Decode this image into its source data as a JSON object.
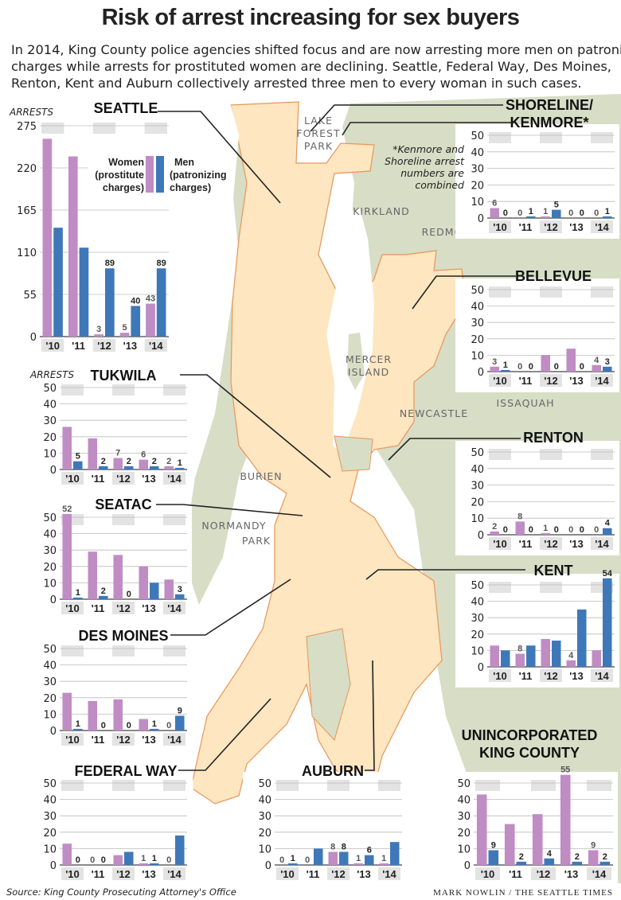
{
  "title": "Risk of arrest increasing for sex buyers",
  "intro": [
    "In 2014, King County police agencies shifted focus and are now arresting more men on patronizing",
    "charges while arrests for prostituted women are declining. Seattle, Federal Way, Des Moines,",
    "Renton, Kent and Auburn collectively arrested three men to every woman in such cases."
  ],
  "source": "Source: King County Prosecuting Attorney's Office",
  "credit": "MARK NOWLIN / THE SEATTLE TIMES",
  "colors": {
    "women": "#c08cc4",
    "men": "#3e78b8",
    "map_city": "#fde6c0",
    "map_land": "#d8ddc6",
    "map_water": "#ffffff",
    "boundary": "#e8955a",
    "band": "#cccccc"
  },
  "legend": {
    "women_line1": "Women",
    "women_line2": "(prostitute",
    "women_line3": "charges)",
    "men_line1": "Men",
    "men_line2": "(patronizing",
    "men_line3": "charges)"
  },
  "shoreline_note": [
    "*Kenmore and",
    "Shoreline arrest",
    "numbers are",
    "combined"
  ],
  "map_labels": [
    "LAKE",
    "FOREST",
    "PARK",
    "KIRKLAND",
    "REDMOND",
    "MERCER",
    "ISLAND",
    "NEWCASTLE",
    "ISSAQUAH",
    "BURIEN",
    "NORMANDY",
    "PARK"
  ],
  "chart_data": [
    {
      "type": "bar",
      "title": "SEATTLE",
      "ylabel": "ARRESTS",
      "categories": [
        "'10",
        "'11",
        "'12",
        "'13",
        "'14"
      ],
      "ylim": [
        0,
        275
      ],
      "yticks": [
        0,
        55,
        110,
        165,
        220,
        275
      ],
      "series": [
        {
          "name": "Women (prostitute charges)",
          "values": [
            258,
            235,
            3,
            5,
            43
          ]
        },
        {
          "name": "Men (patronizing charges)",
          "values": [
            142,
            116,
            89,
            40,
            89
          ]
        }
      ],
      "data_labels": [
        [
          null,
          null,
          "3",
          "5",
          "43"
        ],
        [
          null,
          null,
          "89",
          "40",
          "89"
        ]
      ]
    },
    {
      "type": "bar",
      "title": "SHORELINE/\nKENMORE*",
      "ylabel": "",
      "categories": [
        "'10",
        "'11",
        "'12",
        "'13",
        "'14"
      ],
      "ylim": [
        0,
        50
      ],
      "yticks": [
        0,
        10,
        20,
        30,
        40,
        50
      ],
      "series": [
        {
          "values": [
            6,
            0,
            1,
            0,
            0
          ]
        },
        {
          "values": [
            0,
            1,
            5,
            0,
            1
          ]
        }
      ],
      "data_labels": [
        [
          "6",
          "0",
          "1",
          "0",
          "0"
        ],
        [
          "0",
          "1",
          "5",
          "0",
          "1"
        ]
      ]
    },
    {
      "type": "bar",
      "title": "BELLEVUE",
      "ylabel": "",
      "categories": [
        "'10",
        "'11",
        "'12",
        "'13",
        "'14"
      ],
      "ylim": [
        0,
        50
      ],
      "yticks": [
        0,
        10,
        20,
        30,
        40,
        50
      ],
      "series": [
        {
          "values": [
            3,
            0,
            10,
            14,
            4
          ]
        },
        {
          "values": [
            1,
            0,
            0,
            0,
            3
          ]
        }
      ],
      "data_labels": [
        [
          "3",
          "0",
          null,
          null,
          "4"
        ],
        [
          "1",
          "0",
          "0",
          "0",
          "3"
        ]
      ]
    },
    {
      "type": "bar",
      "title": "TUKWILA",
      "ylabel": "ARRESTS",
      "categories": [
        "'10",
        "'11",
        "'12",
        "'13",
        "'14"
      ],
      "ylim": [
        0,
        50
      ],
      "yticks": [
        0,
        10,
        20,
        30,
        40,
        50
      ],
      "series": [
        {
          "values": [
            26,
            19,
            7,
            6,
            2
          ]
        },
        {
          "values": [
            5,
            2,
            2,
            2,
            1
          ]
        }
      ],
      "data_labels": [
        [
          null,
          null,
          "7",
          "6",
          "2"
        ],
        [
          "5",
          "2",
          "2",
          "2",
          "1"
        ]
      ]
    },
    {
      "type": "bar",
      "title": "RENTON",
      "ylabel": "",
      "categories": [
        "'10",
        "'11",
        "'12",
        "'13",
        "'14"
      ],
      "ylim": [
        0,
        50
      ],
      "yticks": [
        0,
        10,
        20,
        30,
        40,
        50
      ],
      "series": [
        {
          "values": [
            2,
            8,
            1,
            0,
            0
          ]
        },
        {
          "values": [
            0,
            0,
            0,
            0,
            4
          ]
        }
      ],
      "data_labels": [
        [
          "2",
          "8",
          "1",
          "0",
          "0"
        ],
        [
          "0",
          "0",
          "0",
          "0",
          "4"
        ]
      ]
    },
    {
      "type": "bar",
      "title": "SEATAC",
      "ylabel": "",
      "categories": [
        "'10",
        "'11",
        "'12",
        "'13",
        "'14"
      ],
      "ylim": [
        0,
        50
      ],
      "yticks": [
        0,
        10,
        20,
        30,
        40,
        50
      ],
      "series": [
        {
          "values": [
            52,
            29,
            27,
            20,
            12
          ]
        },
        {
          "values": [
            1,
            2,
            0,
            10,
            3
          ]
        }
      ],
      "data_labels": [
        [
          "52",
          null,
          null,
          null,
          null
        ],
        [
          "1",
          "2",
          "0",
          null,
          "3"
        ]
      ]
    },
    {
      "type": "bar",
      "title": "KENT",
      "ylabel": "",
      "categories": [
        "'10",
        "'11",
        "'12",
        "'13",
        "'14"
      ],
      "ylim": [
        0,
        50
      ],
      "yticks": [
        0,
        10,
        20,
        30,
        40,
        50
      ],
      "series": [
        {
          "values": [
            13,
            8,
            17,
            4,
            10
          ]
        },
        {
          "values": [
            10,
            13,
            16,
            35,
            54
          ]
        }
      ],
      "data_labels": [
        [
          null,
          "8",
          null,
          "4",
          null
        ],
        [
          null,
          null,
          null,
          null,
          "54"
        ]
      ]
    },
    {
      "type": "bar",
      "title": "DES MOINES",
      "ylabel": "",
      "categories": [
        "'10",
        "'11",
        "'12",
        "'13",
        "'14"
      ],
      "ylim": [
        0,
        50
      ],
      "yticks": [
        0,
        10,
        20,
        30,
        40,
        50
      ],
      "series": [
        {
          "values": [
            23,
            18,
            19,
            7,
            0
          ]
        },
        {
          "values": [
            1,
            0,
            0,
            1,
            9
          ]
        }
      ],
      "data_labels": [
        [
          null,
          null,
          null,
          null,
          "0"
        ],
        [
          "1",
          "0",
          "0",
          "1",
          "9"
        ]
      ]
    },
    {
      "type": "bar",
      "title": "FEDERAL WAY",
      "ylabel": "",
      "categories": [
        "'10",
        "'11",
        "'12",
        "'13",
        "'14"
      ],
      "ylim": [
        0,
        50
      ],
      "yticks": [
        0,
        10,
        20,
        30,
        40,
        50
      ],
      "series": [
        {
          "values": [
            13,
            0,
            6,
            1,
            0
          ]
        },
        {
          "values": [
            0,
            0,
            8,
            1,
            18
          ]
        }
      ],
      "data_labels": [
        [
          null,
          "0",
          null,
          "1",
          "0"
        ],
        [
          "0",
          "0",
          null,
          "1",
          null
        ]
      ]
    },
    {
      "type": "bar",
      "title": "AUBURN",
      "ylabel": "",
      "categories": [
        "'10",
        "'11",
        "'12",
        "'13",
        "'14"
      ],
      "ylim": [
        0,
        50
      ],
      "yticks": [
        0,
        10,
        20,
        30,
        40,
        50
      ],
      "series": [
        {
          "values": [
            0,
            0,
            8,
            1,
            1
          ]
        },
        {
          "values": [
            1,
            10,
            8,
            6,
            14
          ]
        }
      ],
      "data_labels": [
        [
          "0",
          "0",
          "8",
          "1",
          "1"
        ],
        [
          "1",
          null,
          "8",
          "6",
          null
        ]
      ]
    },
    {
      "type": "bar",
      "title": "UNINCORPORATED\nKING COUNTY",
      "ylabel": "",
      "categories": [
        "'10",
        "'11",
        "'12",
        "'13",
        "'14"
      ],
      "ylim": [
        0,
        50
      ],
      "yticks": [
        0,
        10,
        20,
        30,
        40,
        50
      ],
      "series": [
        {
          "values": [
            43,
            25,
            31,
            55,
            9
          ]
        },
        {
          "values": [
            9,
            2,
            4,
            2,
            2
          ]
        }
      ],
      "data_labels": [
        [
          null,
          null,
          null,
          "55",
          "9"
        ],
        [
          "9",
          "2",
          "4",
          "2",
          "2"
        ]
      ]
    }
  ]
}
